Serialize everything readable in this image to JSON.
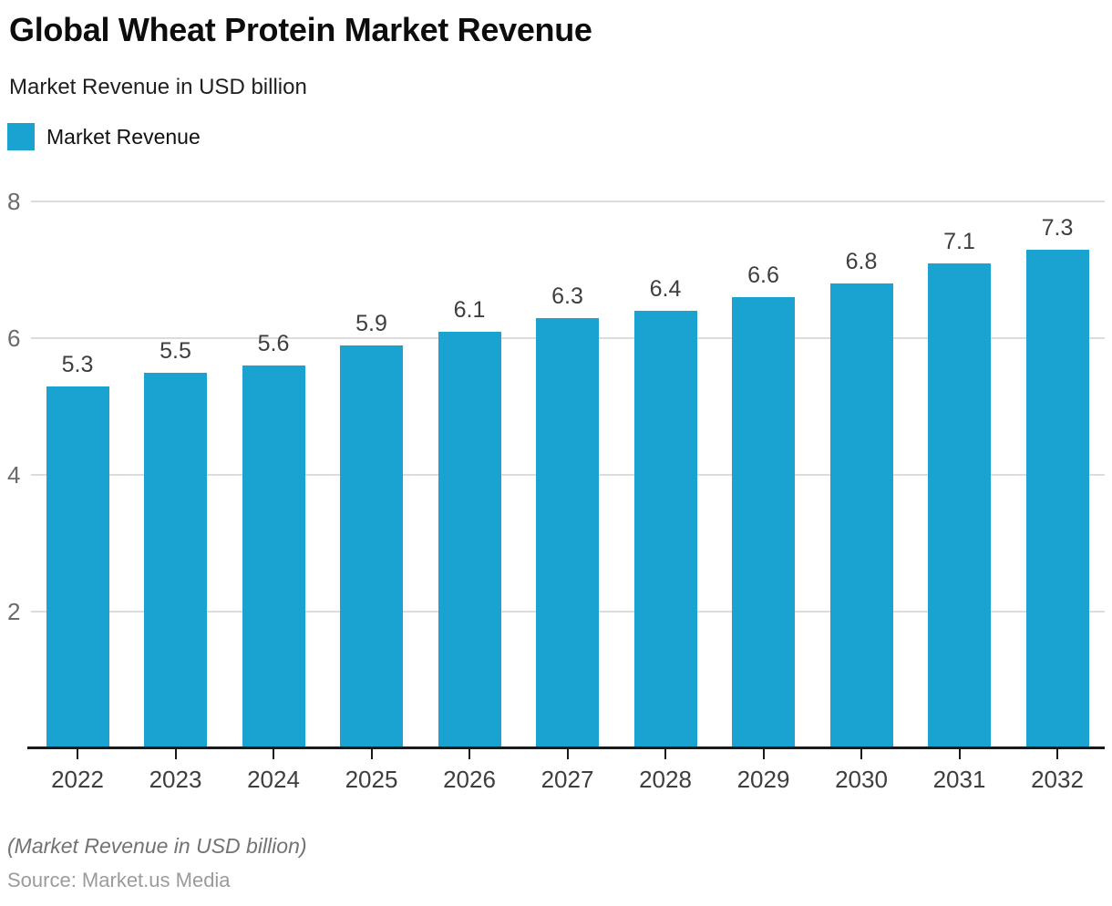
{
  "header": {
    "title": "Global Wheat Protein Market Revenue",
    "subtitle": "Market Revenue in USD billion"
  },
  "legend": {
    "label": "Market Revenue",
    "swatch_color": "#1aa2d1"
  },
  "chart_data": {
    "type": "bar",
    "title": "Global Wheat Protein Market Revenue",
    "subtitle": "Market Revenue in USD billion",
    "categories": [
      "2022",
      "2023",
      "2024",
      "2025",
      "2026",
      "2027",
      "2028",
      "2029",
      "2030",
      "2031",
      "2032"
    ],
    "series": [
      {
        "name": "Market Revenue",
        "values": [
          5.3,
          5.5,
          5.6,
          5.9,
          6.1,
          6.3,
          6.4,
          6.6,
          6.8,
          7.1,
          7.3
        ]
      }
    ],
    "ylabel": "Market Revenue in USD billion",
    "xlabel": "",
    "ylim": [
      0,
      8
    ],
    "yticks": [
      2,
      4,
      6,
      8
    ],
    "grid": true,
    "value_labels": true,
    "legend_position": "top-left",
    "bar_color": "#1aa2d1",
    "grid_color": "#dcdcdc",
    "axis_color": "#1a1a1a"
  },
  "footer": {
    "note": "(Market Revenue in USD billion)",
    "source": "Source: Market.us Media"
  }
}
